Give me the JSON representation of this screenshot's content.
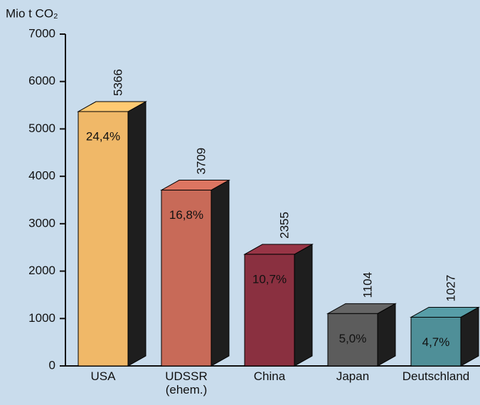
{
  "chart_data": {
    "type": "bar3d",
    "y_axis_title": "Mio t CO₂",
    "categories": [
      "USA",
      "UDSSR\n(ehem.)",
      "China",
      "Japan",
      "Deutschland"
    ],
    "values": [
      5366,
      3709,
      2355,
      1104,
      1027
    ],
    "share_values": [
      24.4,
      16.8,
      10.7,
      5.0,
      4.7
    ],
    "share_labels": [
      "24,4%",
      "16,8%",
      "10,7%",
      "5,0%",
      "4,7%"
    ],
    "colors": [
      "#f0b868",
      "#c86a58",
      "#8a3040",
      "#5c5c5c",
      "#4f8f98"
    ],
    "ylim": [
      0,
      7000
    ],
    "yticks": [
      0,
      1000,
      2000,
      3000,
      4000,
      5000,
      6000,
      7000
    ]
  }
}
